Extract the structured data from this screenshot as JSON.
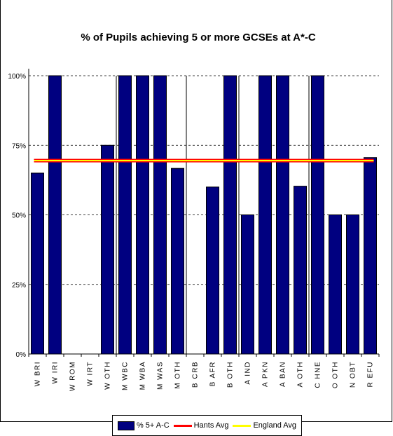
{
  "chart_data": {
    "type": "bar",
    "title": "% of Pupils achieving 5 or more GCSEs at A*-C",
    "categories": [
      "W BRI",
      "W IRI",
      "W ROM",
      "W IRT",
      "W OTH",
      "M WBC",
      "M WBA",
      "M WAS",
      "M OTH",
      "B CRB",
      "B AFR",
      "B OTH",
      "A IND",
      "A PKN",
      "A BAN",
      "A OTH",
      "C HNE",
      "O OTH",
      "N OBT",
      "R EFU"
    ],
    "series": [
      {
        "name": "% 5+ A-C",
        "color": "#000080",
        "values": [
          65,
          100,
          0,
          0,
          75,
          100,
          100,
          100,
          66.7,
          0,
          60,
          100,
          50,
          100,
          100,
          60.3,
          100,
          50,
          50,
          70.6
        ]
      },
      {
        "name": "Hants Avg",
        "color": "#ff0000",
        "value": 69.5
      },
      {
        "name": "England Avg",
        "color": "#ffff00",
        "value": 69.5
      }
    ],
    "yticks": [
      "0%",
      "25%",
      "50%",
      "75%",
      "100%"
    ],
    "ylim": [
      0,
      100
    ],
    "group_dividers_after": [
      4,
      8,
      11,
      15
    ],
    "grid": "horizontal-dashed",
    "legend_position": "bottom"
  }
}
